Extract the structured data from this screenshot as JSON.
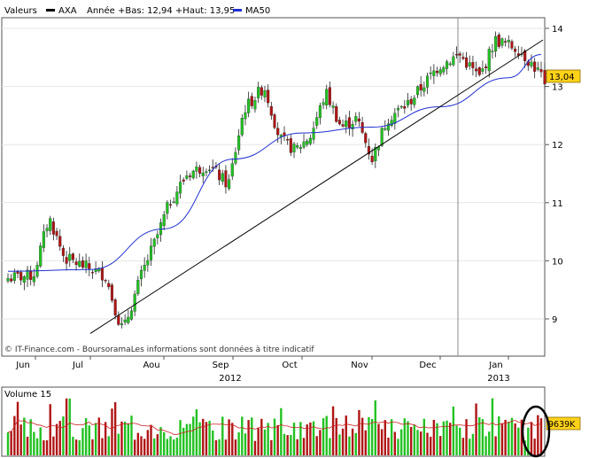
{
  "header": {
    "label": "Valeurs",
    "symbol": "AXA",
    "stats": "Année +Bas: 12,94 +Haut: 13,95",
    "ma_label": "MA50"
  },
  "price_axis": {
    "ticks": [
      "14",
      "13",
      "12",
      "11",
      "10",
      "9"
    ],
    "last_value": "13,04"
  },
  "x_axis": {
    "months": [
      "Jun",
      "Jul",
      "Aou",
      "Sep",
      "Oct",
      "Nov",
      "Dec",
      "Jan"
    ],
    "years": [
      "2012",
      "2013"
    ]
  },
  "disclaimer": "© IT-Finance.com - BoursoramaLes informations sont données à titre indicatif",
  "volume": {
    "label": "Volume 15",
    "last_value": "9639K"
  },
  "colors": {
    "up": "#22c222",
    "down": "#b01515",
    "ma": "#1f2fd0",
    "trendline": "#000000",
    "last_box": "#ffd21a",
    "volume_avg": "#cc2020",
    "highlight_circle": "#000000"
  },
  "chart_data": {
    "type": "candlestick",
    "series": [
      {
        "name": "AXA",
        "type": "candlestick",
        "x": [
          "Jun",
          "Jul",
          "Aou",
          "Sep",
          "Oct",
          "Nov",
          "Dec",
          "Jan"
        ],
        "approx_monthly_close": [
          9.85,
          9.2,
          11.6,
          12.55,
          12.15,
          12.0,
          13.3,
          13.65
        ],
        "last": 13.04
      },
      {
        "name": "MA50",
        "type": "line",
        "x": [
          "Jun",
          "Jul",
          "Aou",
          "Sep",
          "Oct",
          "Nov",
          "Dec",
          "Jan"
        ],
        "approx_values": [
          9.82,
          9.85,
          10.55,
          11.75,
          12.2,
          12.3,
          12.65,
          13.15
        ]
      }
    ],
    "ylim": [
      8.8,
      14.25
    ],
    "yticks": [
      9,
      10,
      11,
      12,
      13,
      14
    ],
    "trendline": {
      "from": {
        "x": "Jul",
        "y": 8.75
      },
      "to": {
        "x": "Jan",
        "y": 13.8
      }
    },
    "volume": {
      "label": "Volume 15",
      "last": "9639K"
    }
  }
}
